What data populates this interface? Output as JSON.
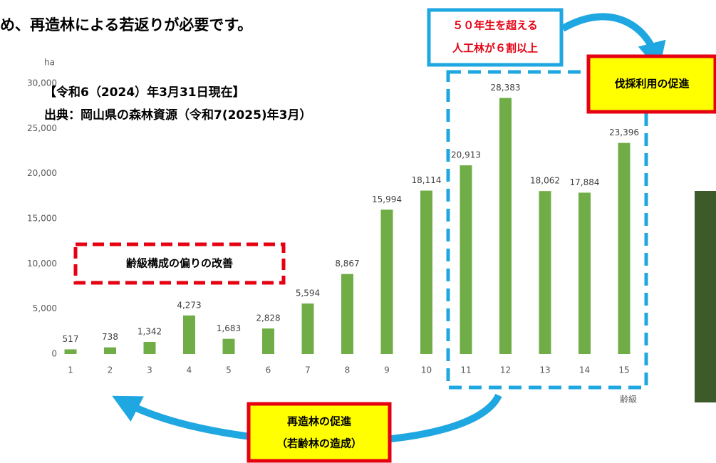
{
  "slide": {
    "heading": "め、再造林による若返りが必要です。",
    "callout_top": [
      "５０年生を超える",
      "人工林が６割以上"
    ],
    "callout_cut": "伐採利用の促進",
    "callout_bias": "齢級構成の偏りの改善",
    "callout_replant": [
      "再造林の促進",
      "（若齢林の造成）"
    ]
  },
  "chart_data": {
    "type": "bar",
    "y_label": "ha",
    "x_label": "齢級",
    "annotations": [
      "【令和6（2024）年3月31日現在】",
      "出典：岡山県の森林資源（令和7(2025)年3月）"
    ],
    "categories": [
      "1",
      "2",
      "3",
      "4",
      "5",
      "6",
      "7",
      "8",
      "9",
      "10",
      "11",
      "12",
      "13",
      "14",
      "15"
    ],
    "values": [
      517,
      738,
      1342,
      4273,
      1683,
      2828,
      5594,
      8867,
      15994,
      18114,
      20913,
      28383,
      18062,
      17884,
      23396
    ],
    "value_labels": [
      "517",
      "738",
      "1,342",
      "4,273",
      "1,683",
      "2,828",
      "5,594",
      "8,867",
      "15,994",
      "18,114",
      "20,913",
      "28,383",
      "18,062",
      "17,884",
      "23,396"
    ],
    "color": "#70ad47",
    "ylim": [
      0,
      30000
    ],
    "yticks": [
      0,
      {
        "value": 5000,
        "label": "5,000"
      },
      {
        "value": 10000,
        "label": "10,000"
      },
      {
        "value": 15000,
        "label": "15,000"
      },
      {
        "value": 20000,
        "label": "20,000"
      },
      {
        "value": 25000,
        "label": "25,000"
      },
      {
        "value": 30000,
        "label": "30,000"
      }
    ],
    "grid": false
  }
}
